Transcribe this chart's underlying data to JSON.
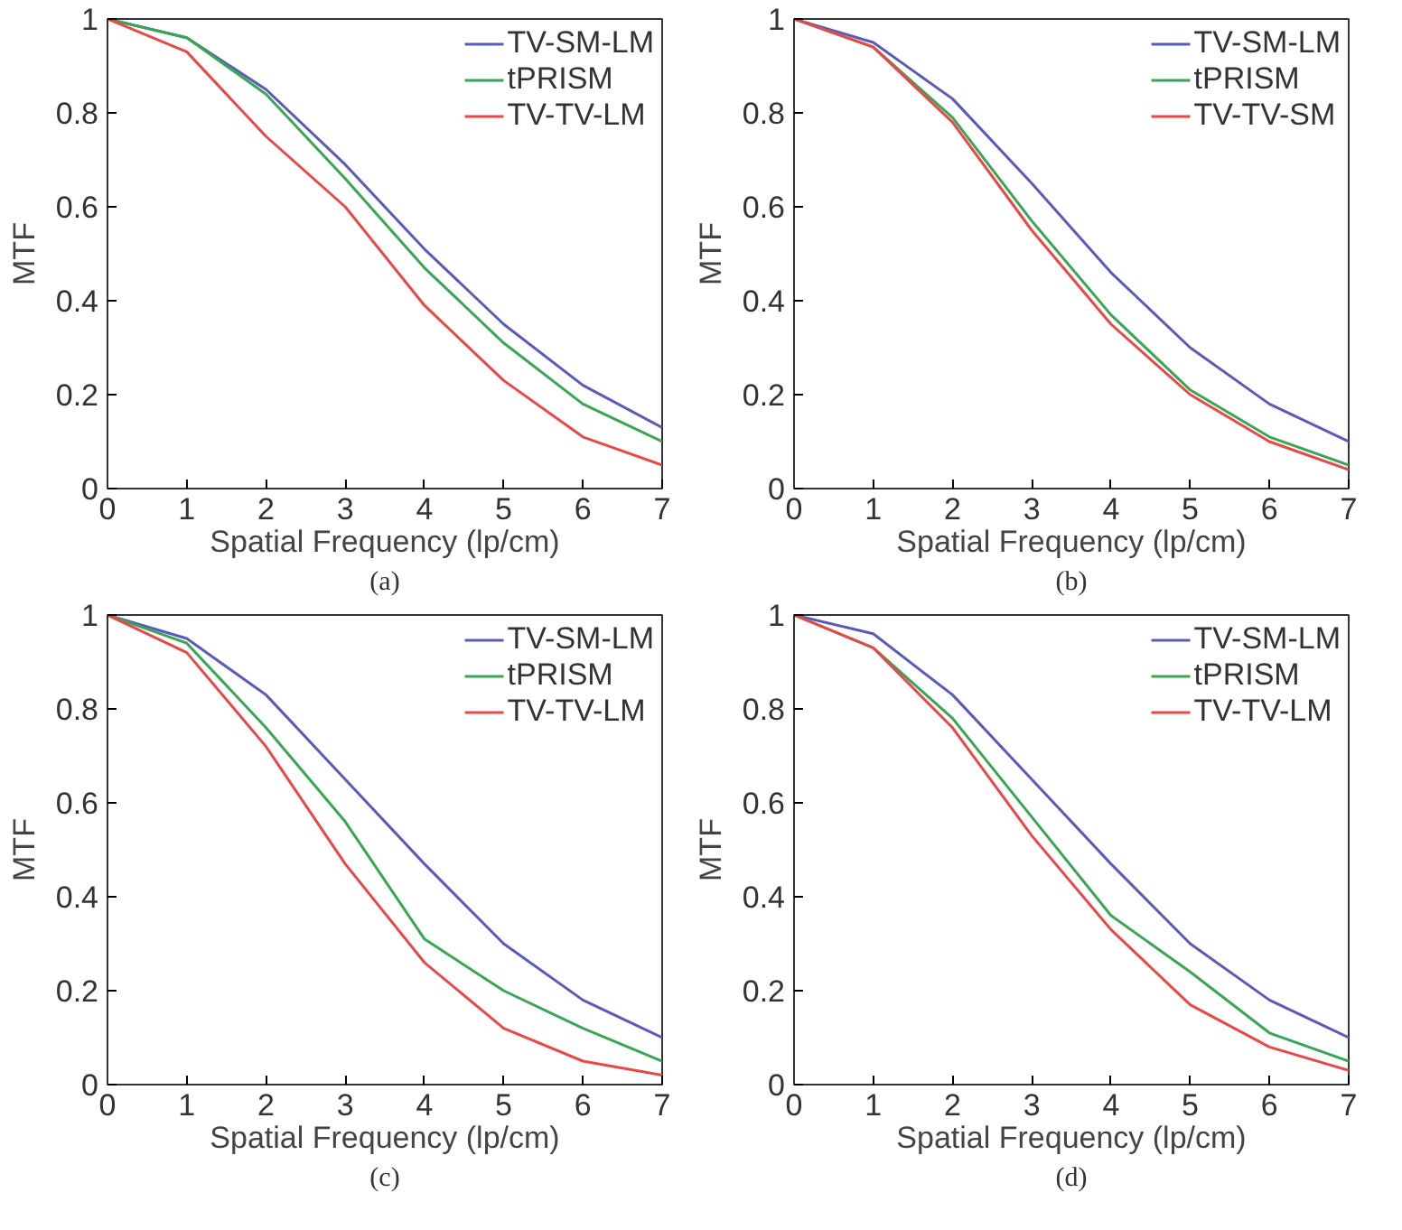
{
  "chart_data": [
    {
      "type": "line",
      "xlabel": "Spatial Frequency (lp/cm)",
      "ylabel": "MTF",
      "annotations": [
        "(a)"
      ],
      "x": [
        0,
        1,
        2,
        3,
        4,
        5,
        6,
        7
      ],
      "xlim": [
        0,
        7
      ],
      "ylim": [
        0,
        1
      ],
      "xticks": [
        0,
        1,
        2,
        3,
        4,
        5,
        6,
        7
      ],
      "yticks": [
        0,
        0.2,
        0.4,
        0.6,
        0.8,
        1
      ],
      "grid": false,
      "legend": "top right",
      "marker": "none",
      "line_style": "solid",
      "series": [
        {
          "name": "TV-SM-LM",
          "color": "#5a5ab8",
          "values": [
            1,
            0.96,
            0.85,
            0.69,
            0.51,
            0.35,
            0.22,
            0.13
          ]
        },
        {
          "name": "tPRISM",
          "color": "#3aa555",
          "values": [
            1,
            0.96,
            0.84,
            0.66,
            0.47,
            0.31,
            0.18,
            0.1
          ]
        },
        {
          "name": "TV-TV-LM",
          "color": "#e84848",
          "values": [
            1,
            0.93,
            0.75,
            0.6,
            0.39,
            0.23,
            0.11,
            0.05
          ]
        }
      ]
    },
    {
      "type": "line",
      "xlabel": "Spatial Frequency (lp/cm)",
      "ylabel": "MTF",
      "annotations": [
        "(b)"
      ],
      "x": [
        0,
        1,
        2,
        3,
        4,
        5,
        6,
        7
      ],
      "xlim": [
        0,
        7
      ],
      "ylim": [
        0,
        1
      ],
      "xticks": [
        0,
        1,
        2,
        3,
        4,
        5,
        6,
        7
      ],
      "yticks": [
        0,
        0.2,
        0.4,
        0.6,
        0.8,
        1
      ],
      "grid": false,
      "legend": "top right",
      "marker": "none",
      "line_style": "solid",
      "series": [
        {
          "name": "TV-SM-LM",
          "color": "#5a5ab8",
          "values": [
            1,
            0.95,
            0.83,
            0.65,
            0.46,
            0.3,
            0.18,
            0.1
          ]
        },
        {
          "name": "tPRISM",
          "color": "#3aa555",
          "values": [
            1,
            0.94,
            0.79,
            0.57,
            0.37,
            0.21,
            0.11,
            0.05
          ]
        },
        {
          "name": "TV-TV-SM",
          "color": "#e84848",
          "values": [
            1,
            0.94,
            0.78,
            0.55,
            0.35,
            0.2,
            0.1,
            0.04
          ]
        }
      ]
    },
    {
      "type": "line",
      "xlabel": "Spatial Frequency (lp/cm)",
      "ylabel": "MTF",
      "annotations": [
        "(c)"
      ],
      "x": [
        0,
        1,
        2,
        3,
        4,
        5,
        6,
        7
      ],
      "xlim": [
        0,
        7
      ],
      "ylim": [
        0,
        1
      ],
      "xticks": [
        0,
        1,
        2,
        3,
        4,
        5,
        6,
        7
      ],
      "yticks": [
        0,
        0.2,
        0.4,
        0.6,
        0.8,
        1
      ],
      "grid": false,
      "legend": "top right",
      "marker": "none",
      "line_style": "solid",
      "series": [
        {
          "name": "TV-SM-LM",
          "color": "#5a5ab8",
          "values": [
            1,
            0.95,
            0.83,
            0.65,
            0.47,
            0.3,
            0.18,
            0.1
          ]
        },
        {
          "name": "tPRISM",
          "color": "#3aa555",
          "values": [
            1,
            0.94,
            0.76,
            0.56,
            0.31,
            0.2,
            0.12,
            0.05
          ]
        },
        {
          "name": "TV-TV-LM",
          "color": "#e84848",
          "values": [
            1,
            0.92,
            0.72,
            0.47,
            0.26,
            0.12,
            0.05,
            0.02
          ]
        }
      ]
    },
    {
      "type": "line",
      "xlabel": "Spatial Frequency (lp/cm)",
      "ylabel": "MTF",
      "annotations": [
        "(d)"
      ],
      "x": [
        0,
        1,
        2,
        3,
        4,
        5,
        6,
        7
      ],
      "xlim": [
        0,
        7
      ],
      "ylim": [
        0,
        1
      ],
      "xticks": [
        0,
        1,
        2,
        3,
        4,
        5,
        6,
        7
      ],
      "yticks": [
        0,
        0.2,
        0.4,
        0.6,
        0.8,
        1
      ],
      "grid": false,
      "legend": "top right",
      "marker": "none",
      "line_style": "solid",
      "series": [
        {
          "name": "TV-SM-LM",
          "color": "#5a5ab8",
          "values": [
            1,
            0.96,
            0.83,
            0.65,
            0.47,
            0.3,
            0.18,
            0.1
          ]
        },
        {
          "name": "tPRISM",
          "color": "#3aa555",
          "values": [
            1,
            0.93,
            0.78,
            0.57,
            0.36,
            0.24,
            0.11,
            0.05
          ]
        },
        {
          "name": "TV-TV-LM",
          "color": "#e84848",
          "values": [
            1,
            0.93,
            0.76,
            0.53,
            0.33,
            0.17,
            0.08,
            0.03
          ]
        }
      ]
    }
  ]
}
